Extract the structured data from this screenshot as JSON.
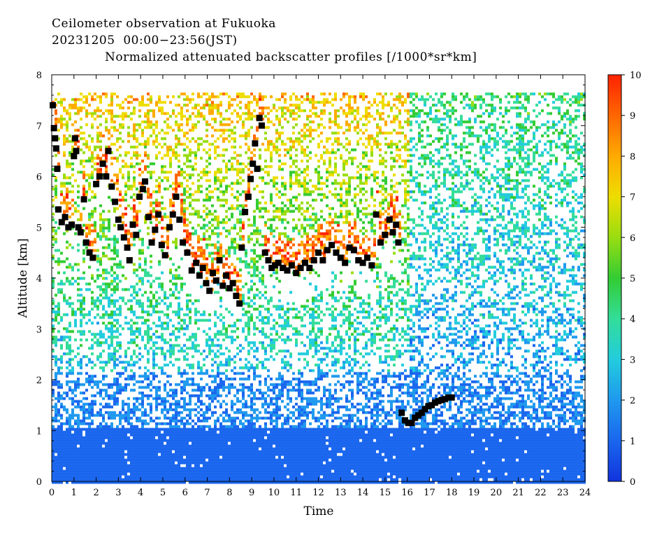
{
  "header": {
    "line1": "Ceilometer observation at Fukuoka",
    "line2": "20231205  00:00−23:56(JST)",
    "line3": "Normalized attenuated backscatter profiles [/1000*sr*km]"
  },
  "chart_data": {
    "type": "heatmap",
    "xlabel": "Time",
    "ylabel": "Altitude [km]",
    "xlim": [
      0,
      24
    ],
    "ylim": [
      0,
      8
    ],
    "x_ticks": [
      "0",
      "1",
      "2",
      "3",
      "4",
      "5",
      "6",
      "7",
      "8",
      "9",
      "10",
      "11",
      "12",
      "13",
      "14",
      "15",
      "16",
      "17",
      "18",
      "19",
      "20",
      "21",
      "22",
      "23",
      "24"
    ],
    "y_ticks": [
      "0",
      "1",
      "2",
      "3",
      "4",
      "5",
      "6",
      "7",
      "8"
    ],
    "colorbar": {
      "range": [
        0,
        10
      ],
      "ticks": [
        "0",
        "1",
        "2",
        "3",
        "4",
        "5",
        "6",
        "7",
        "8",
        "9",
        "10"
      ],
      "colors": [
        "#1133dd",
        "#1a66ee",
        "#1f99ee",
        "#22ccdd",
        "#33dd99",
        "#33cc33",
        "#99dd11",
        "#eedd00",
        "#ffaa00",
        "#ff6600",
        "#ff2200"
      ]
    },
    "data_top_km": 7.65,
    "cloud_base_points": [
      {
        "t": 0.05,
        "h": 7.4
      },
      {
        "t": 0.1,
        "h": 6.95
      },
      {
        "t": 0.15,
        "h": 6.75
      },
      {
        "t": 0.2,
        "h": 6.55
      },
      {
        "t": 0.25,
        "h": 6.15
      },
      {
        "t": 0.3,
        "h": 5.35
      },
      {
        "t": 0.45,
        "h": 5.1
      },
      {
        "t": 0.6,
        "h": 5.2
      },
      {
        "t": 0.75,
        "h": 5.0
      },
      {
        "t": 0.9,
        "h": 5.05
      },
      {
        "t": 1.0,
        "h": 6.4
      },
      {
        "t": 1.05,
        "h": 6.75
      },
      {
        "t": 1.1,
        "h": 6.5
      },
      {
        "t": 1.2,
        "h": 5.0
      },
      {
        "t": 1.3,
        "h": 4.9
      },
      {
        "t": 1.45,
        "h": 5.55
      },
      {
        "t": 1.55,
        "h": 4.7
      },
      {
        "t": 1.7,
        "h": 4.5
      },
      {
        "t": 1.85,
        "h": 4.4
      },
      {
        "t": 2.0,
        "h": 5.85
      },
      {
        "t": 2.15,
        "h": 6.0
      },
      {
        "t": 2.3,
        "h": 6.25
      },
      {
        "t": 2.45,
        "h": 6.0
      },
      {
        "t": 2.55,
        "h": 6.5
      },
      {
        "t": 2.7,
        "h": 5.8
      },
      {
        "t": 2.85,
        "h": 5.5
      },
      {
        "t": 3.0,
        "h": 5.15
      },
      {
        "t": 3.1,
        "h": 5.0
      },
      {
        "t": 3.25,
        "h": 4.8
      },
      {
        "t": 3.4,
        "h": 4.6
      },
      {
        "t": 3.5,
        "h": 4.35
      },
      {
        "t": 3.65,
        "h": 5.05
      },
      {
        "t": 3.8,
        "h": 4.85
      },
      {
        "t": 3.95,
        "h": 5.6
      },
      {
        "t": 4.1,
        "h": 5.75
      },
      {
        "t": 4.2,
        "h": 5.9
      },
      {
        "t": 4.35,
        "h": 5.2
      },
      {
        "t": 4.5,
        "h": 4.7
      },
      {
        "t": 4.65,
        "h": 4.95
      },
      {
        "t": 4.8,
        "h": 5.25
      },
      {
        "t": 4.95,
        "h": 4.65
      },
      {
        "t": 5.1,
        "h": 4.45
      },
      {
        "t": 5.3,
        "h": 5.0
      },
      {
        "t": 5.45,
        "h": 5.25
      },
      {
        "t": 5.6,
        "h": 5.6
      },
      {
        "t": 5.75,
        "h": 5.15
      },
      {
        "t": 5.9,
        "h": 4.7
      },
      {
        "t": 6.1,
        "h": 4.5
      },
      {
        "t": 6.3,
        "h": 4.15
      },
      {
        "t": 6.5,
        "h": 4.3
      },
      {
        "t": 6.65,
        "h": 4.05
      },
      {
        "t": 6.8,
        "h": 4.2
      },
      {
        "t": 6.95,
        "h": 3.9
      },
      {
        "t": 7.1,
        "h": 3.75
      },
      {
        "t": 7.25,
        "h": 4.1
      },
      {
        "t": 7.4,
        "h": 3.95
      },
      {
        "t": 7.55,
        "h": 4.35
      },
      {
        "t": 7.7,
        "h": 3.85
      },
      {
        "t": 7.85,
        "h": 4.05
      },
      {
        "t": 8.0,
        "h": 3.8
      },
      {
        "t": 8.15,
        "h": 3.9
      },
      {
        "t": 8.3,
        "h": 3.65
      },
      {
        "t": 8.45,
        "h": 3.5
      },
      {
        "t": 8.55,
        "h": 4.6
      },
      {
        "t": 8.7,
        "h": 5.3
      },
      {
        "t": 8.85,
        "h": 5.6
      },
      {
        "t": 8.95,
        "h": 5.95
      },
      {
        "t": 9.05,
        "h": 6.25
      },
      {
        "t": 9.15,
        "h": 6.65
      },
      {
        "t": 9.25,
        "h": 6.15
      },
      {
        "t": 9.35,
        "h": 7.15
      },
      {
        "t": 9.45,
        "h": 7.0
      },
      {
        "t": 9.6,
        "h": 4.5
      },
      {
        "t": 9.75,
        "h": 4.35
      },
      {
        "t": 9.9,
        "h": 4.2
      },
      {
        "t": 10.05,
        "h": 4.25
      },
      {
        "t": 10.2,
        "h": 4.3
      },
      {
        "t": 10.4,
        "h": 4.2
      },
      {
        "t": 10.6,
        "h": 4.15
      },
      {
        "t": 10.8,
        "h": 4.25
      },
      {
        "t": 11.0,
        "h": 4.1
      },
      {
        "t": 11.2,
        "h": 4.2
      },
      {
        "t": 11.4,
        "h": 4.3
      },
      {
        "t": 11.6,
        "h": 4.2
      },
      {
        "t": 11.8,
        "h": 4.35
      },
      {
        "t": 12.0,
        "h": 4.5
      },
      {
        "t": 12.2,
        "h": 4.35
      },
      {
        "t": 12.4,
        "h": 4.55
      },
      {
        "t": 12.6,
        "h": 4.65
      },
      {
        "t": 12.8,
        "h": 4.5
      },
      {
        "t": 13.0,
        "h": 4.4
      },
      {
        "t": 13.2,
        "h": 4.3
      },
      {
        "t": 13.4,
        "h": 4.6
      },
      {
        "t": 13.6,
        "h": 4.55
      },
      {
        "t": 13.8,
        "h": 4.35
      },
      {
        "t": 14.0,
        "h": 4.3
      },
      {
        "t": 14.2,
        "h": 4.4
      },
      {
        "t": 14.4,
        "h": 4.25
      },
      {
        "t": 14.6,
        "h": 5.25
      },
      {
        "t": 14.8,
        "h": 4.7
      },
      {
        "t": 15.0,
        "h": 4.85
      },
      {
        "t": 15.2,
        "h": 5.15
      },
      {
        "t": 15.35,
        "h": 4.9
      },
      {
        "t": 15.5,
        "h": 5.05
      },
      {
        "t": 15.6,
        "h": 4.7
      },
      {
        "t": 15.75,
        "h": 1.35
      },
      {
        "t": 15.9,
        "h": 1.2
      },
      {
        "t": 16.05,
        "h": 1.15
      },
      {
        "t": 16.2,
        "h": 1.15
      },
      {
        "t": 16.35,
        "h": 1.25
      },
      {
        "t": 16.5,
        "h": 1.3
      },
      {
        "t": 16.65,
        "h": 1.35
      },
      {
        "t": 16.8,
        "h": 1.42
      },
      {
        "t": 16.95,
        "h": 1.48
      },
      {
        "t": 17.1,
        "h": 1.5
      },
      {
        "t": 17.25,
        "h": 1.55
      },
      {
        "t": 17.4,
        "h": 1.58
      },
      {
        "t": 17.55,
        "h": 1.6
      },
      {
        "t": 17.7,
        "h": 1.62
      },
      {
        "t": 17.85,
        "h": 1.65
      },
      {
        "t": 18.0,
        "h": 1.65
      }
    ]
  }
}
